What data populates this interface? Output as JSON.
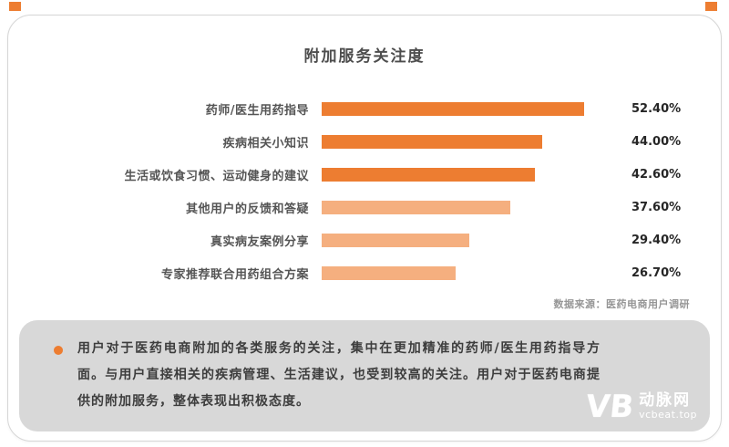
{
  "page": {
    "source_note": "数据来源：医药电商用户调研"
  },
  "chart_data": {
    "type": "bar",
    "orientation": "horizontal",
    "title": "附加服务关注度",
    "categories": [
      "药师/医生用药指导",
      "疾病相关小知识",
      "生活或饮食习惯、运动健身的建议",
      "其他用户的反馈和答疑",
      "真实病友案例分享",
      "专家推荐联合用药组合方案"
    ],
    "values": [
      52.4,
      44.0,
      42.6,
      37.6,
      29.4,
      26.7
    ],
    "value_labels": [
      "52.40%",
      "44.00%",
      "42.60%",
      "37.60%",
      "29.40%",
      "26.70%"
    ],
    "bar_colors": [
      "#ED7D31",
      "#ED7D31",
      "#ED7D31",
      "#F5AF7F",
      "#F5AF7F",
      "#F5AF7F"
    ],
    "xlim": [
      0,
      60
    ],
    "xlabel": "",
    "ylabel": "",
    "grid": false,
    "legend": false
  },
  "summary": {
    "bullet_color": "#ED7D31",
    "text": "用户对于医药电商附加的各类服务的关注，集中在更加精准的药师/医生用药指导方面。与用户直接相关的疾病管理、生活建议，也受到较高的关注。用户对于医药电商提供的附加服务，整体表现出积极态度。"
  },
  "logo": {
    "mark": "VB",
    "name": "动脉网",
    "domain": "vcbeat.top"
  },
  "colors": {
    "dark_orange": "#ED7D31",
    "light_orange": "#F5AF7F",
    "summary_bg": "#d8d8d8",
    "text_dark": "#3d3d3d"
  }
}
